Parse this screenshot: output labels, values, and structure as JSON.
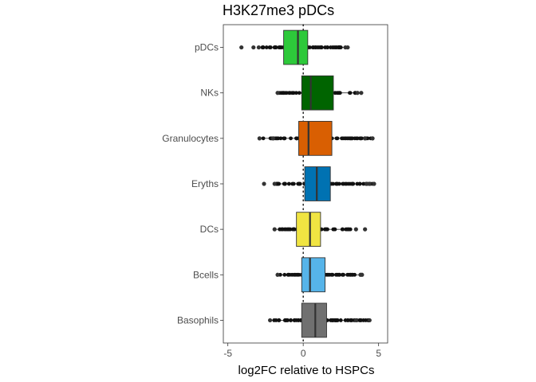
{
  "chart_data": {
    "type": "boxplot",
    "orientation": "horizontal",
    "title": "H3K27me3 pDCs",
    "xlabel": "log2FC relative to HSPCs",
    "ylabel": "",
    "xlim": [
      -5.3,
      5.6
    ],
    "x_ticks": [
      -5,
      0,
      5
    ],
    "x_tick_labels": [
      "-5",
      "0",
      "5"
    ],
    "reference_line": {
      "x": 0,
      "style": "dotted"
    },
    "grid": false,
    "categories": [
      "pDCs",
      "NKs",
      "Granulocytes",
      "Eryths",
      "DCs",
      "Bcells",
      "Basophils"
    ],
    "series": [
      {
        "category": "pDCs",
        "color": "#2dc93a",
        "q1": -1.3,
        "median": -0.35,
        "q3": 0.3,
        "whisker_low": -2.8,
        "whisker_high": 2.7,
        "outliers": [
          -4.1,
          -3.3,
          -2.95,
          2.8,
          2.95
        ]
      },
      {
        "category": "NKs",
        "color": "#006400",
        "q1": -0.1,
        "median": 0.5,
        "q3": 2.0,
        "whisker_low": -1.6,
        "whisker_high": 3.8,
        "outliers": [
          -1.7,
          3.6,
          3.85
        ]
      },
      {
        "category": "Granulocytes",
        "color": "#d95f02",
        "q1": -0.3,
        "median": 0.35,
        "q3": 1.9,
        "whisker_low": -2.8,
        "whisker_high": 4.6,
        "outliers": [
          -2.9,
          -2.0,
          4.1,
          4.6
        ]
      },
      {
        "category": "Eryths",
        "color": "#0072b2",
        "q1": 0.1,
        "median": 0.9,
        "q3": 1.8,
        "whisker_low": -1.8,
        "whisker_high": 4.6,
        "outliers": [
          -2.6,
          -1.9,
          4.2,
          4.4,
          4.7
        ]
      },
      {
        "category": "DCs",
        "color": "#f0e442",
        "q1": -0.45,
        "median": 0.45,
        "q3": 1.15,
        "whisker_low": -1.8,
        "whisker_high": 3.2,
        "outliers": [
          -1.9,
          3.5,
          4.1
        ]
      },
      {
        "category": "Bcells",
        "color": "#56b4e9",
        "q1": -0.1,
        "median": 0.45,
        "q3": 1.45,
        "whisker_low": -1.6,
        "whisker_high": 3.7,
        "outliers": [
          -1.7,
          3.8,
          3.9
        ]
      },
      {
        "category": "Basophils",
        "color": "#707070",
        "q1": -0.1,
        "median": 0.8,
        "q3": 1.55,
        "whisker_low": -2.1,
        "whisker_high": 4.4,
        "outliers": [
          -2.2,
          3.5,
          4.4
        ]
      }
    ]
  }
}
